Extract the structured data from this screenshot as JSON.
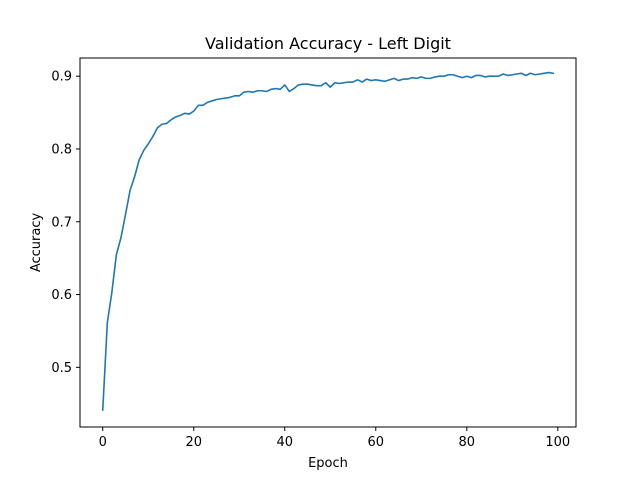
{
  "chart_data": {
    "type": "line",
    "title": "Validation Accuracy - Left Digit",
    "xlabel": "Epoch",
    "ylabel": "Accuracy",
    "xlim": [
      -5,
      104
    ],
    "ylim": [
      0.418,
      0.925
    ],
    "xticks": [
      0,
      20,
      40,
      60,
      80,
      100
    ],
    "xtick_labels": [
      "0",
      "20",
      "40",
      "60",
      "80",
      "100"
    ],
    "yticks": [
      0.5,
      0.6,
      0.7,
      0.8,
      0.9
    ],
    "ytick_labels": [
      "0.5",
      "0.6",
      "0.7",
      "0.8",
      "0.9"
    ],
    "grid": false,
    "legend": "none",
    "series": [
      {
        "color": "#1f77b4",
        "x": [
          0,
          1,
          2,
          3,
          4,
          5,
          6,
          7,
          8,
          9,
          10,
          11,
          12,
          13,
          14,
          15,
          16,
          17,
          18,
          19,
          20,
          21,
          22,
          23,
          24,
          25,
          26,
          27,
          28,
          29,
          30,
          31,
          32,
          33,
          34,
          35,
          36,
          37,
          38,
          39,
          40,
          41,
          42,
          43,
          44,
          45,
          46,
          47,
          48,
          49,
          50,
          51,
          52,
          53,
          54,
          55,
          56,
          57,
          58,
          59,
          60,
          61,
          62,
          63,
          64,
          65,
          66,
          67,
          68,
          69,
          70,
          71,
          72,
          73,
          74,
          75,
          76,
          77,
          78,
          79,
          80,
          81,
          82,
          83,
          84,
          85,
          86,
          87,
          88,
          89,
          90,
          91,
          92,
          93,
          94,
          95,
          96,
          97,
          98,
          99
        ],
        "y": [
          0.441,
          0.561,
          0.603,
          0.655,
          0.678,
          0.71,
          0.743,
          0.762,
          0.785,
          0.798,
          0.807,
          0.817,
          0.829,
          0.834,
          0.835,
          0.84,
          0.844,
          0.846,
          0.849,
          0.848,
          0.852,
          0.86,
          0.86,
          0.864,
          0.866,
          0.868,
          0.869,
          0.87,
          0.871,
          0.873,
          0.873,
          0.878,
          0.879,
          0.878,
          0.88,
          0.88,
          0.879,
          0.882,
          0.883,
          0.882,
          0.888,
          0.879,
          0.883,
          0.888,
          0.889,
          0.889,
          0.888,
          0.887,
          0.887,
          0.891,
          0.885,
          0.891,
          0.89,
          0.891,
          0.892,
          0.892,
          0.895,
          0.892,
          0.896,
          0.894,
          0.895,
          0.894,
          0.893,
          0.895,
          0.897,
          0.894,
          0.896,
          0.896,
          0.898,
          0.897,
          0.899,
          0.897,
          0.897,
          0.899,
          0.9,
          0.9,
          0.902,
          0.902,
          0.9,
          0.898,
          0.9,
          0.898,
          0.901,
          0.901,
          0.899,
          0.9,
          0.9,
          0.9,
          0.903,
          0.901,
          0.902,
          0.903,
          0.904,
          0.901,
          0.904,
          0.902,
          0.903,
          0.904,
          0.905,
          0.904
        ]
      }
    ]
  }
}
